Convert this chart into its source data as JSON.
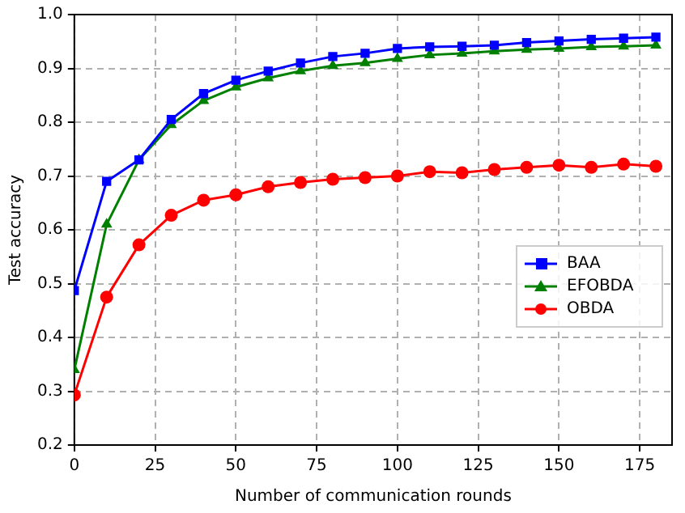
{
  "chart_data": {
    "type": "line",
    "xlabel": "Number of communication rounds",
    "ylabel": "Test accuracy",
    "x": [
      0,
      10,
      20,
      30,
      40,
      50,
      60,
      70,
      80,
      90,
      100,
      110,
      120,
      130,
      140,
      150,
      160,
      170,
      180
    ],
    "series": [
      {
        "name": "BAA",
        "color": "#0000ff",
        "marker": "square",
        "values": [
          0.487,
          0.69,
          0.73,
          0.805,
          0.853,
          0.878,
          0.895,
          0.91,
          0.922,
          0.928,
          0.937,
          0.94,
          0.941,
          0.943,
          0.948,
          0.951,
          0.954,
          0.956,
          0.958
        ]
      },
      {
        "name": "EFOBDA",
        "color": "#008000",
        "marker": "triangle",
        "values": [
          0.34,
          0.61,
          0.73,
          0.795,
          0.84,
          0.865,
          0.882,
          0.895,
          0.905,
          0.91,
          0.918,
          0.925,
          0.928,
          0.932,
          0.935,
          0.937,
          0.94,
          0.941,
          0.943
        ]
      },
      {
        "name": "OBDA",
        "color": "#ff0000",
        "marker": "circle",
        "values": [
          0.293,
          0.475,
          0.572,
          0.627,
          0.655,
          0.665,
          0.68,
          0.688,
          0.694,
          0.697,
          0.7,
          0.708,
          0.706,
          0.712,
          0.716,
          0.72,
          0.716,
          0.722,
          0.718
        ]
      }
    ],
    "xlim": [
      0,
      185
    ],
    "xticks": [
      0,
      25,
      50,
      75,
      100,
      125,
      150,
      175
    ],
    "ylim": [
      0.2,
      1.0
    ],
    "yticks": [
      {
        "value": 0.2,
        "label": "0.2"
      },
      {
        "value": 0.3,
        "label": "0.3"
      },
      {
        "value": 0.4,
        "label": "0.4"
      },
      {
        "value": 0.5,
        "label": "0.5"
      },
      {
        "value": 0.6,
        "label": "0.6"
      },
      {
        "value": 0.7,
        "label": "0.7"
      },
      {
        "value": 0.8,
        "label": "0.8"
      },
      {
        "value": 0.9,
        "label": "0.9"
      },
      {
        "value": 1.0,
        "label": "1.0"
      }
    ],
    "grid": true,
    "legend": "center right",
    "line_style": "solid"
  }
}
